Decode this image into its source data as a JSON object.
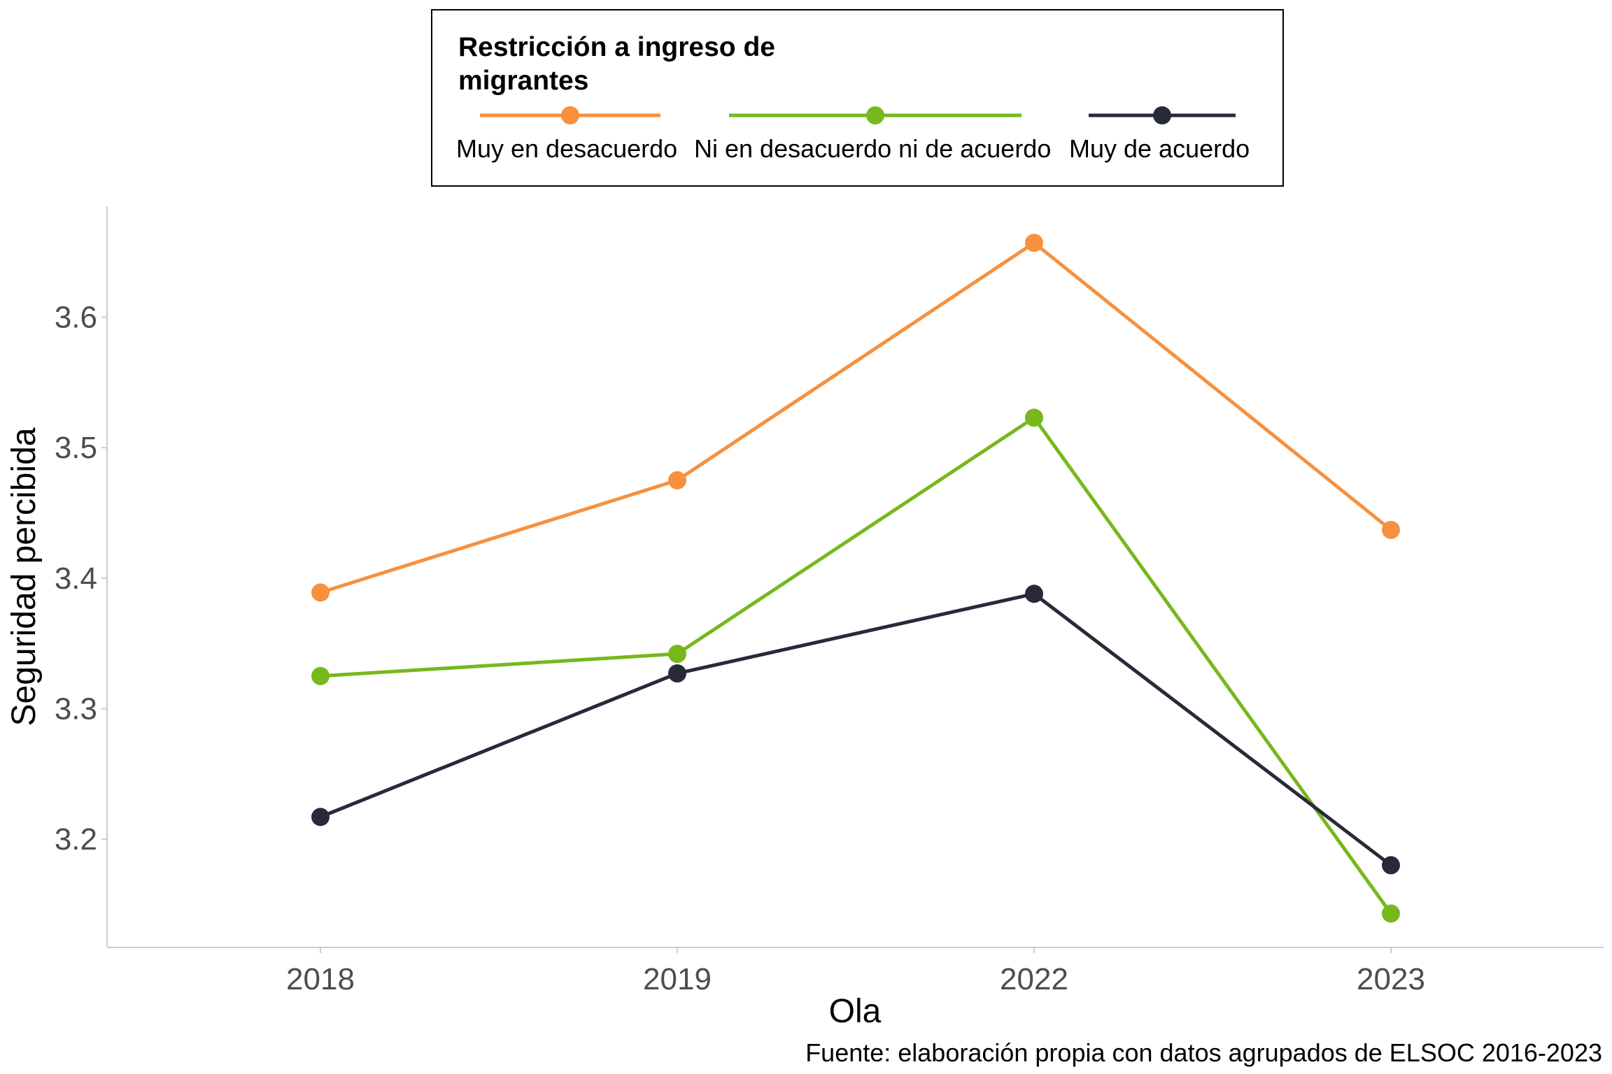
{
  "chart_data": {
    "type": "line",
    "categories": [
      "2018",
      "2019",
      "2022",
      "2023"
    ],
    "series": [
      {
        "name": "Muy en desacuerdo",
        "color": "#F7913D",
        "values": [
          3.389,
          3.475,
          3.657,
          3.437
        ]
      },
      {
        "name": "Ni en desacuerdo ni de acuerdo",
        "color": "#77B81D",
        "values": [
          3.325,
          3.342,
          3.523,
          3.143
        ]
      },
      {
        "name": "Muy de acuerdo",
        "color": "#282A3A",
        "values": [
          3.217,
          3.327,
          3.388,
          3.18
        ]
      }
    ],
    "xlabel": "Ola",
    "ylabel": "Seguridad percibida",
    "yticks": [
      3.2,
      3.3,
      3.4,
      3.5,
      3.6
    ],
    "ylim": [
      3.117,
      3.685
    ],
    "legend": {
      "title_line1": "Restricción a ingreso de",
      "title_line2": "migrantes",
      "placement": "top"
    },
    "caption": "Fuente: elaboración propia con datos agrupados de ELSOC 2016-2023",
    "grid": false
  }
}
